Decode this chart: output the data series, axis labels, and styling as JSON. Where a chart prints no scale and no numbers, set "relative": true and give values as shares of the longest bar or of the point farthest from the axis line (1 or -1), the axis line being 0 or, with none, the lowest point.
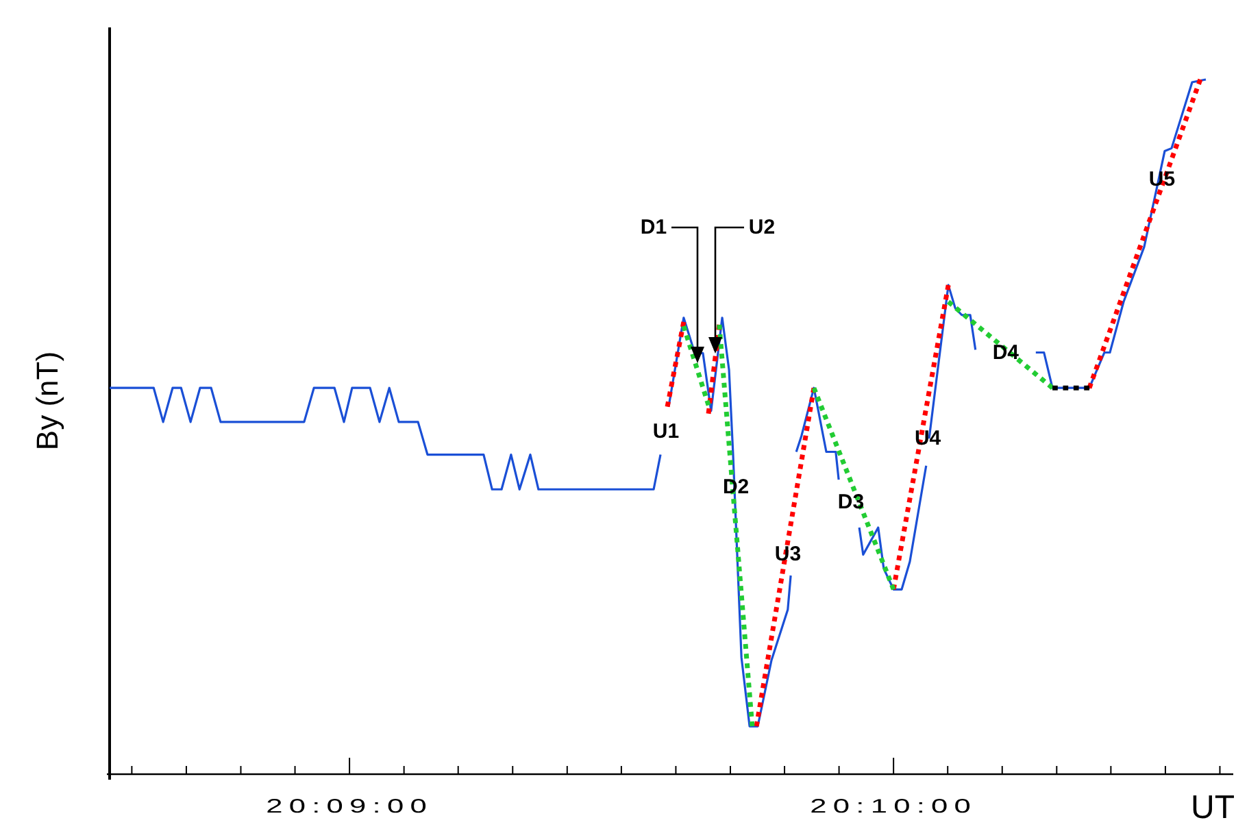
{
  "chart_data": {
    "type": "line",
    "relative": true,
    "ylabel": "By (nT)",
    "xlabel": "UT",
    "xlim": [
      20.14265,
      20.17708
    ],
    "xticks": [
      {
        "value": 20.14333,
        "label": null
      },
      {
        "value": 20.145,
        "label": null
      },
      {
        "value": 20.14667,
        "label": null
      },
      {
        "value": 20.14833,
        "label": null
      },
      {
        "value": 20.15,
        "label": "20:09:00"
      },
      {
        "value": 20.15167,
        "label": null
      },
      {
        "value": 20.15333,
        "label": null
      },
      {
        "value": 20.155,
        "label": null
      },
      {
        "value": 20.15667,
        "label": null
      },
      {
        "value": 20.15833,
        "label": null
      },
      {
        "value": 20.16,
        "label": null
      },
      {
        "value": 20.16167,
        "label": null
      },
      {
        "value": 20.16333,
        "label": null
      },
      {
        "value": 20.165,
        "label": null
      },
      {
        "value": 20.16667,
        "label": "20:10:00"
      },
      {
        "value": 20.16833,
        "label": null
      },
      {
        "value": 20.17,
        "label": null
      },
      {
        "value": 20.17167,
        "label": null
      },
      {
        "value": 20.17333,
        "label": null
      },
      {
        "value": 20.175,
        "label": null
      },
      {
        "value": 20.17667,
        "label": null
      }
    ],
    "series": [
      {
        "color": "#1a4fd6",
        "line_style": "solid",
        "x": [
          20.14265,
          20.144,
          20.14429,
          20.14458,
          20.14484,
          20.14513,
          20.14542,
          20.14576,
          20.14605,
          20.14861,
          20.14891,
          20.14954,
          20.14983,
          20.15008,
          20.15063,
          20.15092,
          20.15122,
          20.15151,
          20.1521,
          20.15239,
          20.15411,
          20.15437,
          20.15466,
          20.15495,
          20.15521,
          20.15554,
          20.15579,
          20.15617,
          20.15932,
          20.15953,
          20.15965,
          20.15978,
          20.16024,
          20.16058,
          20.16083,
          20.16108,
          20.16142,
          20.16163,
          20.16175,
          20.16201,
          20.16226,
          20.16251,
          20.16293,
          20.16343,
          20.16352,
          20.1636,
          20.16369,
          20.16385,
          20.16423,
          20.16461,
          20.1649,
          20.16499,
          20.1653,
          20.16562,
          20.16574,
          20.1662,
          20.16637,
          20.16667,
          20.16692,
          20.16717,
          20.16767,
          20.1677,
          20.16776,
          20.16797,
          20.16835,
          20.16856,
          20.16876,
          20.16902,
          20.16918,
          20.17,
          20.17103,
          20.17128,
          20.17154,
          20.17267,
          20.17313,
          20.1733,
          20.17372,
          20.17435,
          20.17498,
          20.17519,
          20.17582,
          20.17624
        ],
        "values": [
          0.556,
          0.556,
          0.507,
          0.556,
          0.556,
          0.507,
          0.556,
          0.556,
          0.507,
          0.507,
          0.556,
          0.556,
          0.507,
          0.556,
          0.556,
          0.507,
          0.556,
          0.507,
          0.507,
          0.46,
          0.46,
          0.41,
          0.41,
          0.46,
          0.41,
          0.46,
          0.41,
          0.41,
          0.41,
          0.46,
          null,
          0.529,
          0.657,
          0.606,
          0.606,
          0.523,
          0.657,
          0.582,
          0.464,
          0.168,
          0.069,
          0.069,
          0.164,
          0.237,
          0.286,
          null,
          0.464,
          0.487,
          0.556,
          0.464,
          0.464,
          0.424,
          null,
          0.355,
          0.316,
          0.355,
          0.296,
          0.266,
          0.266,
          0.306,
          0.444,
          null,
          0.483,
          0.562,
          0.704,
          0.671,
          0.661,
          0.661,
          0.611,
          null,
          0.607,
          0.607,
          0.556,
          0.556,
          0.607,
          0.607,
          0.68,
          0.759,
          0.897,
          0.901,
          0.996,
          1
        ]
      },
      {
        "color": "#ff0000",
        "line_style": "dotted",
        "x": [
          20.15974,
          20.16024
        ],
        "values": [
          0.529,
          0.651
        ]
      },
      {
        "color": "#ff0000",
        "line_style": "dotted",
        "x": [
          20.161,
          20.16133
        ],
        "values": [
          0.519,
          0.647
        ]
      },
      {
        "color": "#ff0000",
        "line_style": "dotted",
        "x": [
          20.16247,
          20.16423
        ],
        "values": [
          0.069,
          0.556
        ]
      },
      {
        "color": "#ff0000",
        "line_style": "dotted",
        "x": [
          20.16667,
          20.16835
        ],
        "values": [
          0.266,
          0.704
        ]
      },
      {
        "color": "#ff0000",
        "line_style": "dotted",
        "x": [
          20.17267,
          20.17607
        ],
        "values": [
          0.556,
          1
        ]
      },
      {
        "color": "#22cc33",
        "line_style": "dotted",
        "x": [
          20.16024,
          20.161
        ],
        "values": [
          0.645,
          0.531
        ]
      },
      {
        "color": "#22cc33",
        "line_style": "dotted",
        "x": [
          20.16133,
          20.16234
        ],
        "values": [
          0.647,
          0.069
        ]
      },
      {
        "color": "#22cc33",
        "line_style": "dotted",
        "x": [
          20.16423,
          20.16667
        ],
        "values": [
          0.556,
          0.266
        ]
      },
      {
        "color": "#22cc33",
        "line_style": "dotted",
        "x": [
          20.16835,
          20.17154
        ],
        "values": [
          0.68,
          0.556
        ]
      },
      {
        "color": "#000000",
        "line_style": "dotted",
        "x": [
          20.17154,
          20.17267
        ],
        "values": [
          0.556,
          0.556
        ]
      }
    ],
    "annotations": [
      "D1",
      "U2",
      {
        "text": "U1",
        "x": 20.15999,
        "y": 0.588
      },
      {
        "text": "D2",
        "x": 20.16184,
        "y": 0.358
      },
      {
        "text": "U3",
        "x": 20.16335,
        "y": 0.313
      },
      {
        "text": "D3",
        "x": 20.16545,
        "y": 0.411
      },
      {
        "text": "U4",
        "x": 20.16751,
        "y": 0.483
      },
      {
        "text": "D4",
        "x": 20.16994,
        "y": 0.618
      },
      {
        "text": "U5",
        "x": 20.17435,
        "y": 0.775
      }
    ]
  }
}
